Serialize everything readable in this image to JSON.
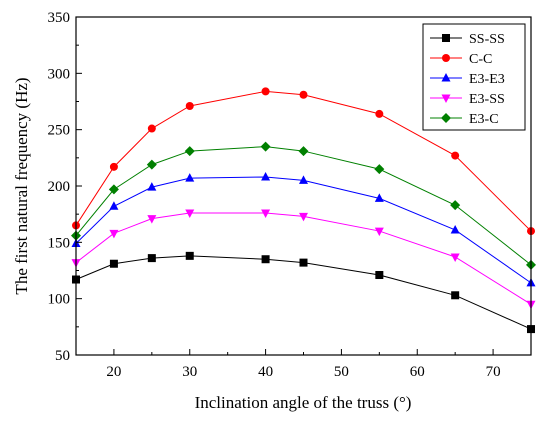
{
  "chart_data": {
    "type": "line",
    "xlabel": "Inclination angle of the truss (°)",
    "ylabel": "The first natural frequency (Hz)",
    "xlim": [
      15,
      75
    ],
    "ylim": [
      50,
      350
    ],
    "xticks": [
      20,
      30,
      40,
      50,
      60,
      70
    ],
    "yticks": [
      50,
      100,
      150,
      200,
      250,
      300,
      350
    ],
    "grid": false,
    "legend_position": "top-right",
    "x": [
      15,
      20,
      25,
      30,
      40,
      45,
      55,
      65,
      75
    ],
    "series": [
      {
        "name": "SS-SS",
        "color": "#000000",
        "marker": "square",
        "values": [
          117,
          131,
          136,
          138,
          135,
          132,
          121,
          103,
          73
        ]
      },
      {
        "name": "C-C",
        "color": "#ff0000",
        "marker": "circle",
        "values": [
          165,
          217,
          251,
          271,
          284,
          281,
          264,
          227,
          160
        ]
      },
      {
        "name": "E3-E3",
        "color": "#0000ff",
        "marker": "triangle-up",
        "values": [
          149,
          182,
          199,
          207,
          208,
          205,
          189,
          161,
          114
        ]
      },
      {
        "name": "E3-SS",
        "color": "#ff00ff",
        "marker": "triangle-down",
        "values": [
          132,
          158,
          171,
          176,
          176,
          173,
          160,
          137,
          95
        ]
      },
      {
        "name": "E3-C",
        "color": "#008000",
        "marker": "diamond",
        "values": [
          156,
          197,
          219,
          231,
          235,
          231,
          215,
          183,
          130
        ]
      }
    ]
  }
}
